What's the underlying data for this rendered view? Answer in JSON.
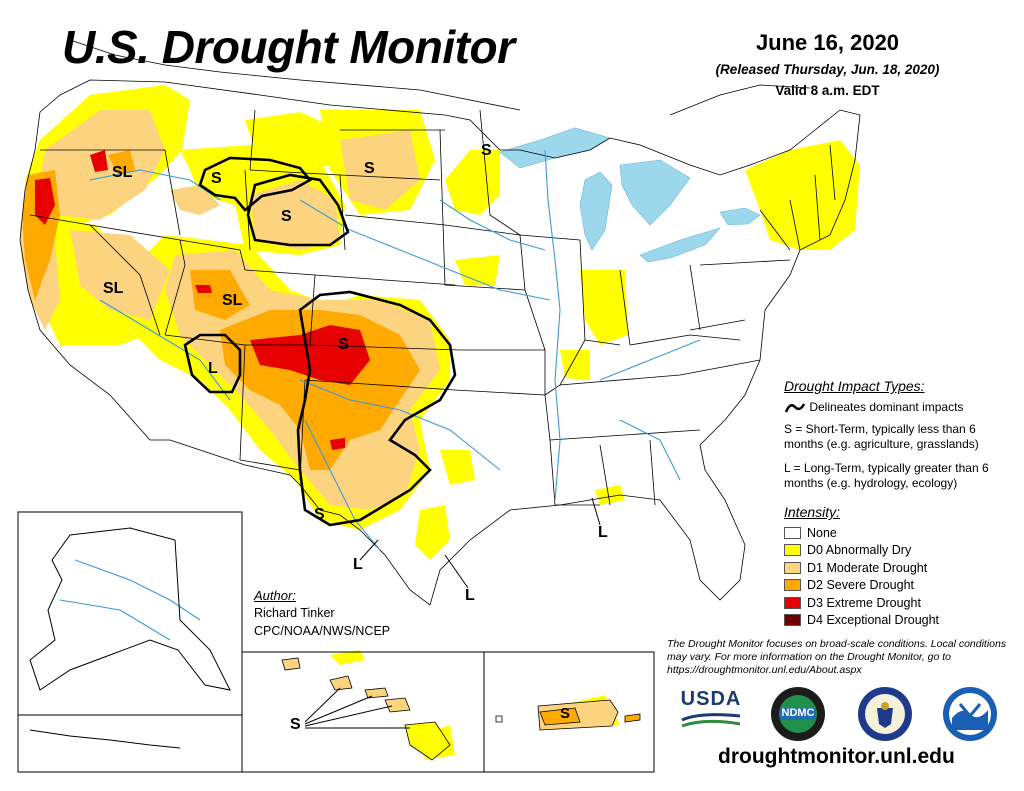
{
  "header": {
    "title": "U.S. Drought Monitor",
    "date": "June 16, 2020",
    "released": "(Released Thursday, Jun. 18, 2020)",
    "valid": "Valid 8 a.m. EDT"
  },
  "impact_legend": {
    "title": "Drought Impact Types:",
    "delineates": "Delineates dominant impacts",
    "short_term": "S = Short-Term, typically less than 6 months (e.g. agriculture, grasslands)",
    "long_term": "L = Long-Term, typically greater than 6 months (e.g. hydrology, ecology)"
  },
  "intensity_legend": {
    "title": "Intensity:",
    "items": [
      {
        "label": "None",
        "color": "#ffffff"
      },
      {
        "label": "D0 Abnormally Dry",
        "color": "#ffff00"
      },
      {
        "label": "D1 Moderate Drought",
        "color": "#fcd37f"
      },
      {
        "label": "D2 Severe Drought",
        "color": "#ffaa00"
      },
      {
        "label": "D3 Extreme Drought",
        "color": "#e60000"
      },
      {
        "label": "D4 Exceptional Drought",
        "color": "#730000"
      }
    ]
  },
  "author": {
    "label": "Author:",
    "name": "Richard Tinker",
    "org": "CPC/NOAA/NWS/NCEP"
  },
  "note": "The Drought Monitor focuses on broad-scale conditions. Local conditions may vary. For more information on the Drought Monitor, go to https://droughtmonitor.unl.edu/About.aspx",
  "website": "droughtmonitor.unl.edu",
  "logos": {
    "usda": "USDA",
    "ndmc": "NDMC"
  },
  "map_labels": {
    "sl_oregon": "SL",
    "s_idaho": "S",
    "s_wyoming": "S",
    "s_south_dakota": "S",
    "s_minnesota": "S",
    "sl_nevada": "SL",
    "sl_utah": "SL",
    "s_colorado_kansas": "S",
    "l_four_corners": "L",
    "s_west_texas": "S",
    "l_south_texas": "L",
    "l_texas_coast": "L",
    "l_louisiana": "L",
    "s_hawaii": "S",
    "s_puerto_rico": "S"
  },
  "colors": {
    "water": "#9dd7ec",
    "river": "#3c9ad8",
    "boundary": "#000000"
  }
}
